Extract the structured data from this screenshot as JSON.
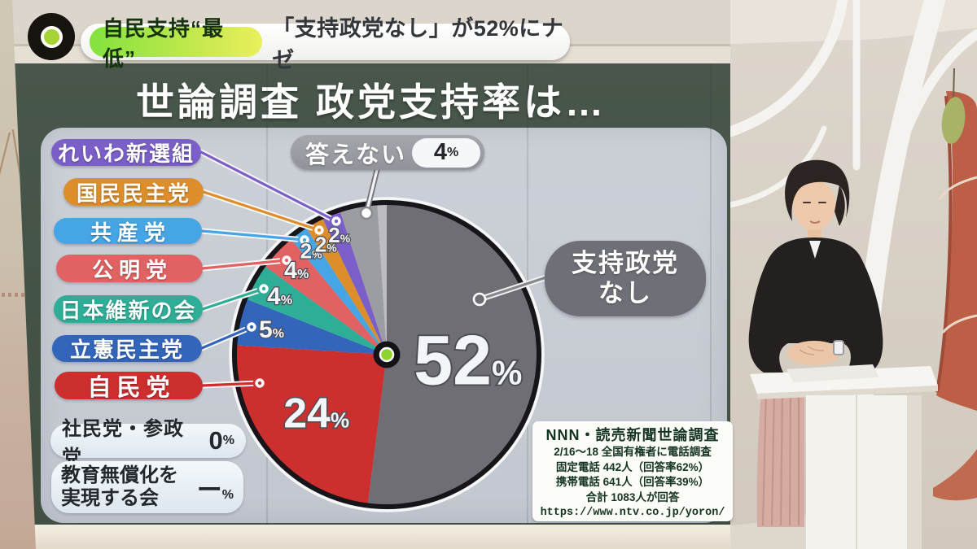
{
  "header": {
    "badge": "自民支持“最低”",
    "headline": "「支持政党なし」が52%にナゼ"
  },
  "board": {
    "title": "世論調査 政党支持率は…"
  },
  "percent_sign": "%",
  "chart_data": {
    "type": "pie",
    "title": "世論調査 政党支持率は…",
    "unit": "%",
    "start_angle_deg": 0,
    "direction": "clockwise",
    "series": [
      {
        "label": "支持政党なし",
        "value": 52,
        "color": "#6e6e74"
      },
      {
        "label": "自民党",
        "value": 24,
        "color": "#cd2f2f"
      },
      {
        "label": "立憲民主党",
        "value": 5,
        "color": "#3365bb"
      },
      {
        "label": "日本維新の会",
        "value": 4,
        "color": "#2fae97"
      },
      {
        "label": "公明党",
        "value": 4,
        "color": "#e06262"
      },
      {
        "label": "共産党",
        "value": 2,
        "color": "#45a5e5"
      },
      {
        "label": "国民民主党",
        "value": 2,
        "color": "#dd8e2a"
      },
      {
        "label": "れいわ新選組",
        "value": 2,
        "color": "#7a5fc8"
      },
      {
        "label": "答えない",
        "value": 4,
        "color": "#9c9ca3"
      },
      {
        "label": "",
        "value": 1,
        "color": "#bcbcc2"
      }
    ],
    "no_data_parties": [
      {
        "label": "社民党・参政党",
        "value": "0"
      },
      {
        "label_lines": [
          "教育無償化を",
          "実現する会"
        ],
        "value": "ー"
      }
    ],
    "callout": {
      "lines": [
        "支持政党",
        "なし"
      ]
    }
  },
  "source_box": {
    "lines": [
      "NNN・読売新聞世論調査",
      "2/16〜18 全国有権者に電話調査",
      "固定電話 442人（回答率62%）",
      "携帯電話 641人（回答率39%）",
      "合計 1083人が回答",
      "https://www.ntv.co.jp/yoron/"
    ]
  },
  "colors": {
    "board_green": "#44524a",
    "panel_gray": "#c8ccd3",
    "badge_green": "#8ae33f",
    "badge_yellow": "#e9f05c",
    "logo_green": "#a6d434"
  }
}
